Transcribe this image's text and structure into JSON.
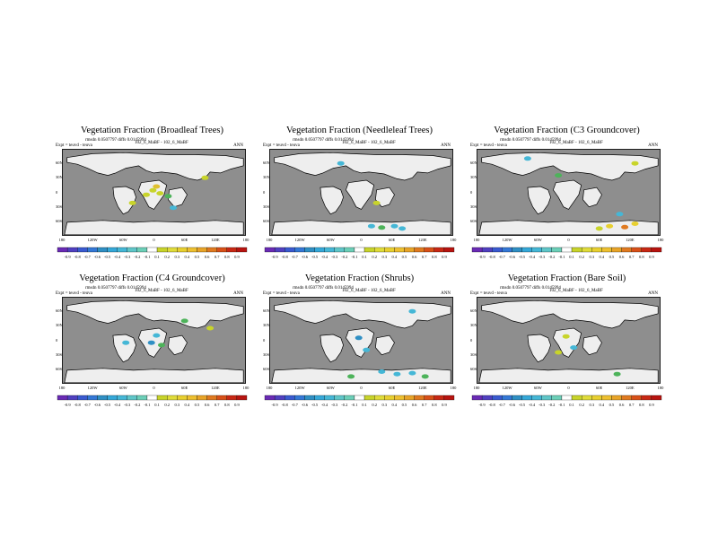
{
  "panels": [
    {
      "title": "Vegetation Fraction (Broadleaf Trees)",
      "stats": "rmsdn 0.0507797 diffs 0.0145994",
      "expt": "Expt = teuvd - teuva",
      "run": "102_6_MaBF - 102_6_MaBF",
      "period": "ANN",
      "blobs": [
        {
          "lon": -2,
          "lat": 4,
          "c": "#c8d42a"
        },
        {
          "lon": 12,
          "lat": -2,
          "c": "#c8d42a"
        },
        {
          "lon": -15,
          "lat": -5,
          "c": "#c8d42a"
        },
        {
          "lon": 5,
          "lat": 12,
          "c": "#e0c030"
        },
        {
          "lon": 28,
          "lat": -8,
          "c": "#4db35a"
        },
        {
          "lon": 38,
          "lat": -32,
          "c": "#45b7d6"
        },
        {
          "lon": -42,
          "lat": -22,
          "c": "#c8d42a"
        },
        {
          "lon": 100,
          "lat": 30,
          "c": "#c8d42a"
        }
      ]
    },
    {
      "title": "Vegetation Fraction (Needleleaf Trees)",
      "stats": "rmsdn 0.0507797 diffs 0.0145994",
      "expt": "Expt = teuvd - teuva",
      "run": "102_6_MaBF - 102_6_MaBF",
      "period": "ANN",
      "blobs": [
        {
          "lon": 20,
          "lat": -70,
          "c": "#45b7d6"
        },
        {
          "lon": 40,
          "lat": -73,
          "c": "#4db35a"
        },
        {
          "lon": 65,
          "lat": -70,
          "c": "#45b7d6"
        },
        {
          "lon": 80,
          "lat": -75,
          "c": "#45b7d6"
        },
        {
          "lon": -40,
          "lat": 60,
          "c": "#45b7d6"
        },
        {
          "lon": 30,
          "lat": -22,
          "c": "#c8d42a"
        }
      ]
    },
    {
      "title": "Vegetation Fraction (C3 Groundcover)",
      "stats": "rmsdn 0.0507797 diffs 0.0145994",
      "expt": "Expt = teuvd - teuva",
      "run": "102_6_MaBF - 102_6_MaBF",
      "period": "ANN",
      "blobs": [
        {
          "lon": 80,
          "lat": -70,
          "c": "#e8d030"
        },
        {
          "lon": 110,
          "lat": -72,
          "c": "#e07a20"
        },
        {
          "lon": 130,
          "lat": -65,
          "c": "#e8d030"
        },
        {
          "lon": 60,
          "lat": -75,
          "c": "#c8d42a"
        },
        {
          "lon": -20,
          "lat": 35,
          "c": "#4db35a"
        },
        {
          "lon": -80,
          "lat": 70,
          "c": "#45b7d6"
        },
        {
          "lon": 130,
          "lat": 60,
          "c": "#c8d42a"
        },
        {
          "lon": 100,
          "lat": -45,
          "c": "#45b7d6"
        }
      ]
    },
    {
      "title": "Vegetation Fraction (C4 Groundcover)",
      "stats": "rmsdn 0.0507797 diffs 0.0145994",
      "expt": "Expt = teuvd - teuva",
      "run": "102_6_MaBF - 102_6_MaBF",
      "period": "ANN",
      "blobs": [
        {
          "lon": 5,
          "lat": 10,
          "c": "#45b7d6"
        },
        {
          "lon": -5,
          "lat": -5,
          "c": "#2f8fc4"
        },
        {
          "lon": 15,
          "lat": -10,
          "c": "#4db35a"
        },
        {
          "lon": -55,
          "lat": -5,
          "c": "#45b7d6"
        },
        {
          "lon": 60,
          "lat": 40,
          "c": "#4db35a"
        },
        {
          "lon": 110,
          "lat": 25,
          "c": "#c8d42a"
        }
      ]
    },
    {
      "title": "Vegetation Fraction (Shrubs)",
      "stats": "rmsdn 0.0507797 diffs 0.0145994",
      "expt": "Expt = teuvd - teuva",
      "run": "102_6_MaBF - 102_6_MaBF",
      "period": "ANN",
      "blobs": [
        {
          "lon": 40,
          "lat": -65,
          "c": "#45b7d6"
        },
        {
          "lon": 70,
          "lat": -70,
          "c": "#45b7d6"
        },
        {
          "lon": 100,
          "lat": -68,
          "c": "#45b7d6"
        },
        {
          "lon": 125,
          "lat": -75,
          "c": "#4db35a"
        },
        {
          "lon": -20,
          "lat": -75,
          "c": "#4db35a"
        },
        {
          "lon": -5,
          "lat": 5,
          "c": "#2f8fc4"
        },
        {
          "lon": 10,
          "lat": -20,
          "c": "#45b7d6"
        },
        {
          "lon": 100,
          "lat": 60,
          "c": "#45b7d6"
        }
      ]
    },
    {
      "title": "Vegetation Fraction (Bare Soil)",
      "stats": "rmsdn 0.0507797 diffs 0.0145994",
      "expt": "Expt = teuvd - teuva",
      "run": "102_6_MaBF - 102_6_MaBF",
      "period": "ANN",
      "blobs": [
        {
          "lon": -5,
          "lat": 8,
          "c": "#c8d42a"
        },
        {
          "lon": -20,
          "lat": -25,
          "c": "#c8d42a"
        },
        {
          "lon": 10,
          "lat": -15,
          "c": "#45b7d6"
        },
        {
          "lon": 95,
          "lat": -70,
          "c": "#4db35a"
        }
      ]
    }
  ],
  "lon_labels": [
    "180",
    "120W",
    "60W",
    "0",
    "60E",
    "120E",
    "180"
  ],
  "lat_labels": [
    "60N",
    "30N",
    "0",
    "30S",
    "60S"
  ],
  "colorbar": {
    "labels": [
      "-0.9",
      "-0.8",
      "-0.7",
      "-0.6",
      "-0.5",
      "-0.4",
      "-0.3",
      "-0.2",
      "-0.1",
      "0.1",
      "0.2",
      "0.3",
      "0.4",
      "0.5",
      "0.6",
      "0.7",
      "0.8",
      "0.9"
    ],
    "colors": [
      "#6a2bb5",
      "#5040c0",
      "#3a5ad0",
      "#3478d6",
      "#2f8fc4",
      "#35a8d8",
      "#45b7d6",
      "#5fc6c8",
      "#6ccfb8",
      "#ffffff",
      "#c8d42a",
      "#e0dc3a",
      "#e8d030",
      "#eec030",
      "#e8a428",
      "#e07a20",
      "#d85018",
      "#c82814",
      "#b81410"
    ]
  },
  "colors": {
    "ocean": "#8e8e8e",
    "land": "#eeeeee",
    "coast": "#000000"
  }
}
